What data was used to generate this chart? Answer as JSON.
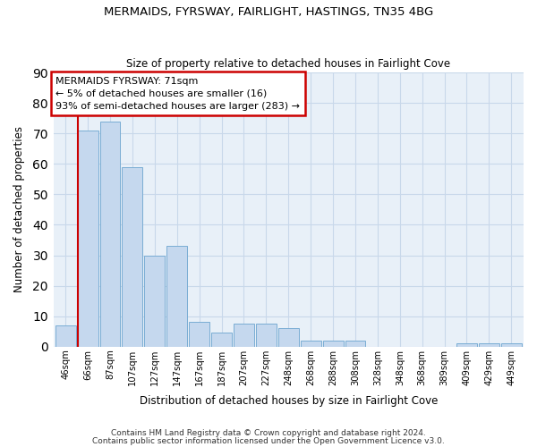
{
  "title1": "MERMAIDS, FYRSWAY, FAIRLIGHT, HASTINGS, TN35 4BG",
  "title2": "Size of property relative to detached houses in Fairlight Cove",
  "xlabel": "Distribution of detached houses by size in Fairlight Cove",
  "ylabel": "Number of detached properties",
  "categories": [
    "46sqm",
    "66sqm",
    "87sqm",
    "107sqm",
    "127sqm",
    "147sqm",
    "167sqm",
    "187sqm",
    "207sqm",
    "227sqm",
    "248sqm",
    "268sqm",
    "288sqm",
    "308sqm",
    "328sqm",
    "348sqm",
    "368sqm",
    "389sqm",
    "409sqm",
    "429sqm",
    "449sqm"
  ],
  "values": [
    7,
    71,
    74,
    59,
    30,
    33,
    8,
    4.5,
    7.5,
    7.5,
    6,
    2,
    2,
    2,
    0,
    0,
    0,
    0,
    1,
    1,
    1
  ],
  "bar_color": "#c5d8ee",
  "bar_edge_color": "#7aadd4",
  "highlight_bar_idx": 1,
  "highlight_line_color": "#cc0000",
  "annotation_text": "MERMAIDS FYRSWAY: 71sqm\n← 5% of detached houses are smaller (16)\n93% of semi-detached houses are larger (283) →",
  "annotation_box_color": "#ffffff",
  "annotation_box_edge": "#cc0000",
  "footer1": "Contains HM Land Registry data © Crown copyright and database right 2024.",
  "footer2": "Contains public sector information licensed under the Open Government Licence v3.0.",
  "bg_color": "#ffffff",
  "plot_bg_color": "#e8f0f8",
  "grid_color": "#c8d8ea",
  "ylim": [
    0,
    90
  ],
  "yticks": [
    0,
    10,
    20,
    30,
    40,
    50,
    60,
    70,
    80,
    90
  ]
}
